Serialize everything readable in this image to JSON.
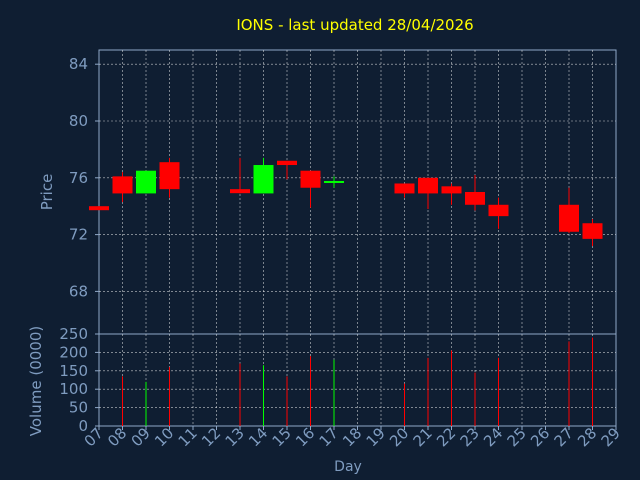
{
  "colors": {
    "background": "#0f1e32",
    "title": "#ffff00",
    "axis_text": "#7f9cc0",
    "frame": "#8fa8c8",
    "grid": "#ffffff",
    "up": "#00ff00",
    "down": "#ff0000"
  },
  "chart_data": [
    {
      "type": "candlestick",
      "title": "IONS - last updated 28/04/2026",
      "ylabel": "Price",
      "ylim": [
        65,
        85
      ],
      "yticks": [
        "84",
        "80",
        "76",
        "72",
        "68"
      ],
      "grid": true,
      "candles": [
        {
          "day": "07",
          "open": 74.0,
          "high": 74.0,
          "low": 73.9,
          "close": 73.9
        },
        {
          "day": "08",
          "open": 76.1,
          "high": 76.4,
          "low": 74.3,
          "close": 74.9
        },
        {
          "day": "09",
          "open": 74.9,
          "high": 76.5,
          "low": 74.9,
          "close": 76.5
        },
        {
          "day": "10",
          "open": 77.1,
          "high": 77.4,
          "low": 74.6,
          "close": 75.2
        },
        {
          "day": "13",
          "open": 75.2,
          "high": 77.4,
          "low": 74.9,
          "close": 75.0
        },
        {
          "day": "14",
          "open": 74.9,
          "high": 77.4,
          "low": 74.9,
          "close": 76.9
        },
        {
          "day": "15",
          "open": 77.2,
          "high": 77.2,
          "low": 75.9,
          "close": 76.9
        },
        {
          "day": "16",
          "open": 76.5,
          "high": 76.5,
          "low": 73.9,
          "close": 75.3
        },
        {
          "day": "17",
          "open": 75.7,
          "high": 76.1,
          "low": 75.3,
          "close": 75.7
        },
        {
          "day": "20",
          "open": 75.6,
          "high": 75.6,
          "low": 74.6,
          "close": 74.9
        },
        {
          "day": "21",
          "open": 76.0,
          "high": 76.0,
          "low": 73.8,
          "close": 74.9
        },
        {
          "day": "22",
          "open": 75.4,
          "high": 75.6,
          "low": 74.1,
          "close": 74.9
        },
        {
          "day": "23",
          "open": 75.0,
          "high": 76.2,
          "low": 73.7,
          "close": 74.1
        },
        {
          "day": "24",
          "open": 74.1,
          "high": 74.6,
          "low": 72.4,
          "close": 73.3
        },
        {
          "day": "27",
          "open": 74.1,
          "high": 75.3,
          "low": 72.1,
          "close": 72.2
        },
        {
          "day": "28",
          "open": 72.8,
          "high": 73.1,
          "low": 71.2,
          "close": 71.7
        }
      ]
    },
    {
      "type": "bar",
      "ylabel": "Volume (0000)",
      "xlabel": "Day",
      "ylim": [
        0,
        250
      ],
      "yticks": [
        "250",
        "200",
        "150",
        "100",
        "50",
        "0"
      ],
      "x_ticks": [
        "07",
        "08",
        "09",
        "10",
        "11",
        "12",
        "13",
        "14",
        "15",
        "16",
        "17",
        "18",
        "19",
        "20",
        "21",
        "22",
        "23",
        "24",
        "25",
        "26",
        "27",
        "28",
        "29"
      ],
      "bars": [
        {
          "day": "08",
          "value": 135,
          "direction": "down"
        },
        {
          "day": "09",
          "value": 120,
          "direction": "up"
        },
        {
          "day": "10",
          "value": 160,
          "direction": "down"
        },
        {
          "day": "13",
          "value": 170,
          "direction": "down"
        },
        {
          "day": "14",
          "value": 165,
          "direction": "up"
        },
        {
          "day": "15",
          "value": 135,
          "direction": "down"
        },
        {
          "day": "16",
          "value": 190,
          "direction": "down"
        },
        {
          "day": "17",
          "value": 180,
          "direction": "up"
        },
        {
          "day": "20",
          "value": 115,
          "direction": "down"
        },
        {
          "day": "21",
          "value": 185,
          "direction": "down"
        },
        {
          "day": "22",
          "value": 205,
          "direction": "down"
        },
        {
          "day": "23",
          "value": 145,
          "direction": "down"
        },
        {
          "day": "24",
          "value": 185,
          "direction": "down"
        },
        {
          "day": "27",
          "value": 230,
          "direction": "down"
        },
        {
          "day": "28",
          "value": 240,
          "direction": "down"
        }
      ]
    }
  ]
}
